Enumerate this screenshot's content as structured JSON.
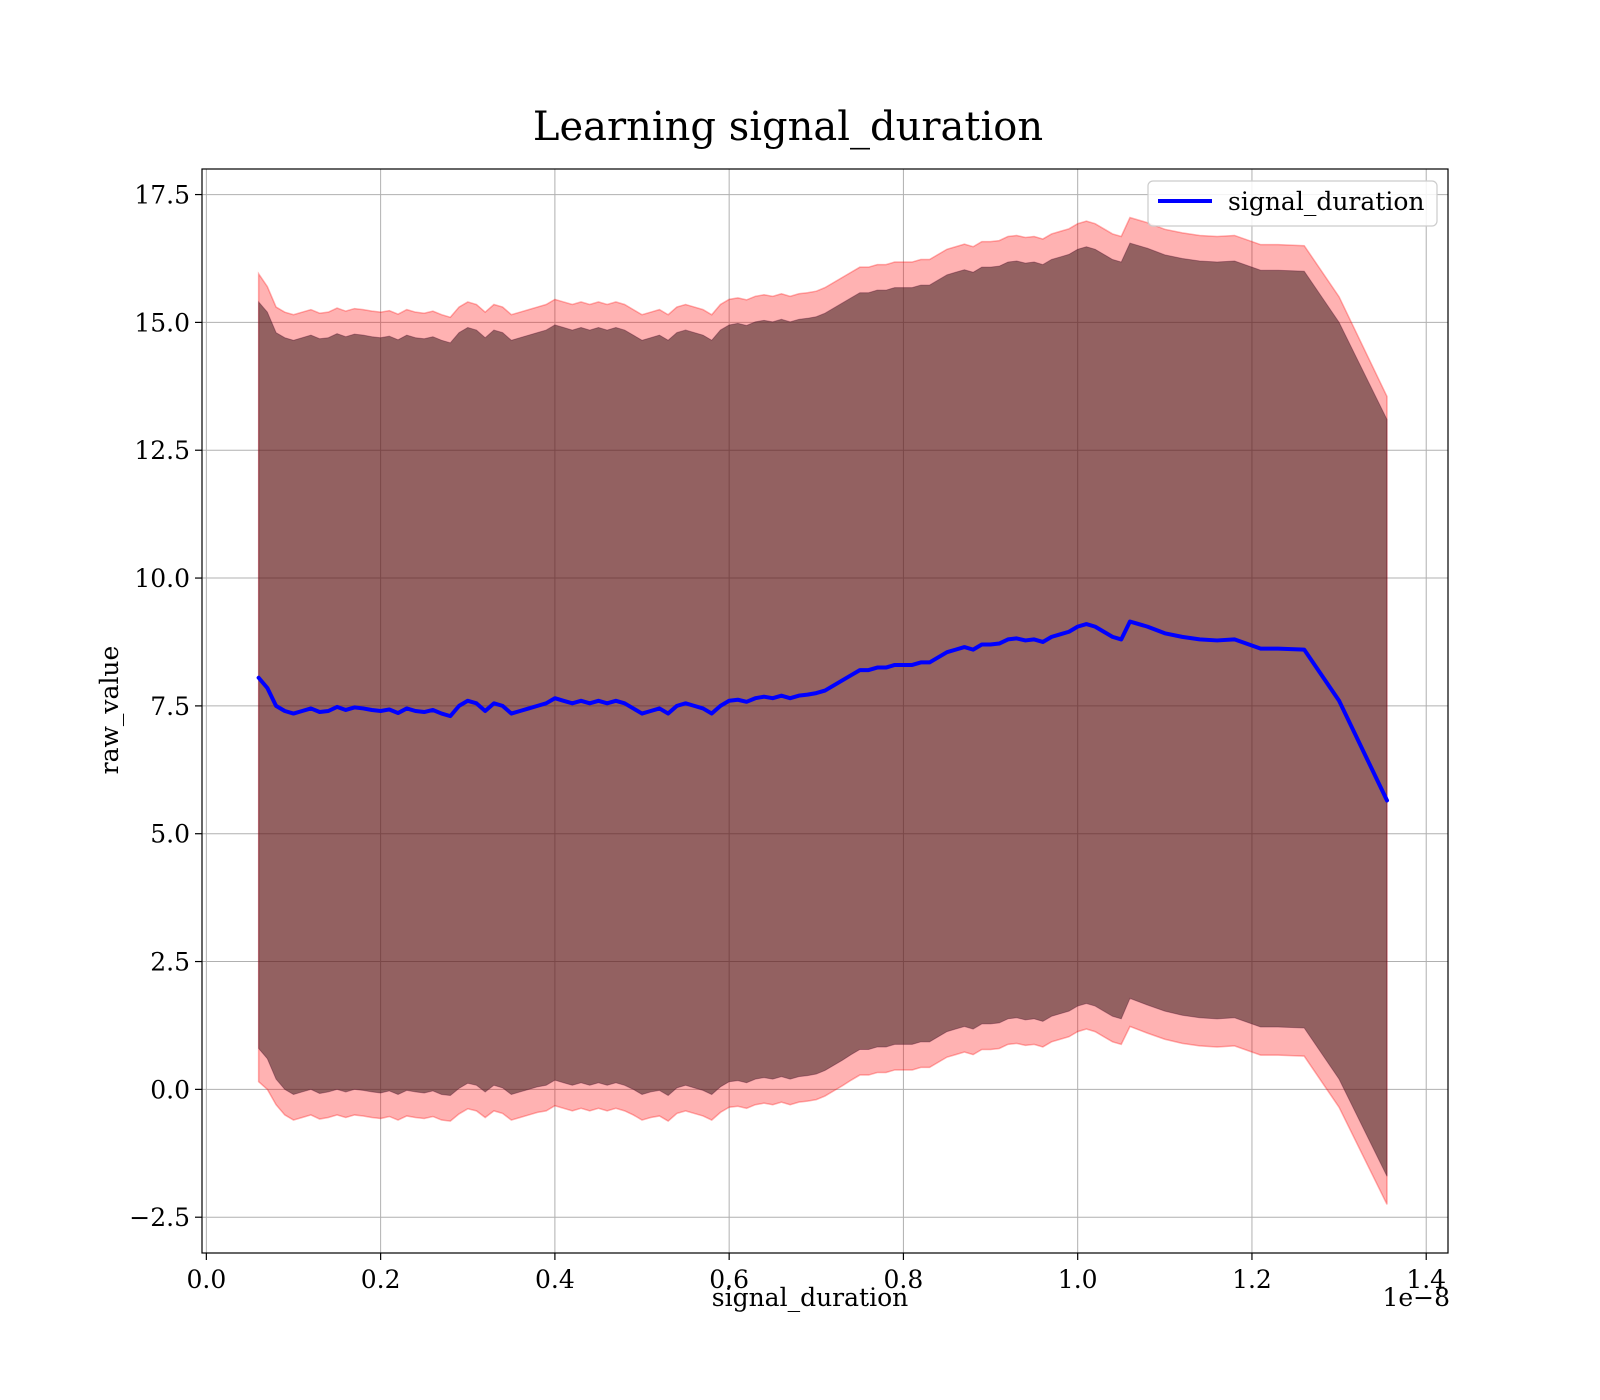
{
  "chart_data": {
    "type": "line",
    "title": "Learning signal_duration",
    "xlabel": "signal_duration",
    "ylabel": "raw_value",
    "x_offset_label": "1e−8",
    "x_ticks": [
      0.0,
      0.2,
      0.4,
      0.6,
      0.8,
      1.0,
      1.2,
      1.4
    ],
    "x_tick_labels": [
      "0.0",
      "0.2",
      "0.4",
      "0.6",
      "0.8",
      "1.0",
      "1.2",
      "1.4"
    ],
    "y_ticks": [
      -2.5,
      0.0,
      2.5,
      5.0,
      7.5,
      10.0,
      12.5,
      15.0,
      17.5
    ],
    "y_tick_labels": [
      "−2.5",
      "0.0",
      "2.5",
      "5.0",
      "7.5",
      "10.0",
      "12.5",
      "15.0",
      "17.5"
    ],
    "xlim": [
      -0.005,
      1.425
    ],
    "ylim": [
      -3.2,
      18.0
    ],
    "grid": true,
    "legend_position": "top-right",
    "colors": {
      "line": "#0000ff",
      "outer_band": "#ff0000",
      "inner_band": "#006400",
      "core_band": "#4d0a28"
    },
    "x": [
      0.06,
      0.07,
      0.08,
      0.09,
      0.1,
      0.11,
      0.12,
      0.13,
      0.14,
      0.15,
      0.16,
      0.17,
      0.18,
      0.19,
      0.2,
      0.21,
      0.22,
      0.23,
      0.24,
      0.25,
      0.26,
      0.27,
      0.28,
      0.29,
      0.3,
      0.31,
      0.32,
      0.33,
      0.34,
      0.35,
      0.36,
      0.37,
      0.38,
      0.39,
      0.4,
      0.41,
      0.42,
      0.43,
      0.44,
      0.45,
      0.46,
      0.47,
      0.48,
      0.49,
      0.5,
      0.51,
      0.52,
      0.53,
      0.54,
      0.55,
      0.56,
      0.57,
      0.58,
      0.59,
      0.6,
      0.61,
      0.62,
      0.63,
      0.64,
      0.65,
      0.66,
      0.67,
      0.68,
      0.69,
      0.7,
      0.71,
      0.72,
      0.73,
      0.74,
      0.75,
      0.76,
      0.77,
      0.78,
      0.79,
      0.8,
      0.81,
      0.82,
      0.83,
      0.84,
      0.85,
      0.86,
      0.87,
      0.88,
      0.89,
      0.9,
      0.91,
      0.92,
      0.93,
      0.94,
      0.95,
      0.96,
      0.97,
      0.98,
      0.99,
      1.0,
      1.01,
      1.02,
      1.03,
      1.04,
      1.05,
      1.06,
      1.08,
      1.1,
      1.12,
      1.14,
      1.16,
      1.18,
      1.21,
      1.23,
      1.26,
      1.3,
      1.355
    ],
    "series": [
      {
        "name": "signal_duration",
        "values": [
          8.05,
          7.85,
          7.5,
          7.4,
          7.35,
          7.4,
          7.45,
          7.38,
          7.4,
          7.48,
          7.42,
          7.47,
          7.45,
          7.42,
          7.4,
          7.43,
          7.36,
          7.45,
          7.4,
          7.38,
          7.42,
          7.35,
          7.3,
          7.5,
          7.6,
          7.55,
          7.4,
          7.55,
          7.5,
          7.35,
          7.4,
          7.45,
          7.5,
          7.55,
          7.65,
          7.6,
          7.55,
          7.6,
          7.55,
          7.6,
          7.55,
          7.6,
          7.55,
          7.45,
          7.35,
          7.4,
          7.45,
          7.35,
          7.5,
          7.55,
          7.5,
          7.45,
          7.35,
          7.5,
          7.6,
          7.62,
          7.58,
          7.65,
          7.68,
          7.65,
          7.7,
          7.65,
          7.7,
          7.72,
          7.75,
          7.8,
          7.9,
          8.0,
          8.1,
          8.2,
          8.2,
          8.25,
          8.25,
          8.3,
          8.3,
          8.3,
          8.35,
          8.35,
          8.45,
          8.55,
          8.6,
          8.65,
          8.6,
          8.7,
          8.7,
          8.72,
          8.8,
          8.82,
          8.78,
          8.8,
          8.75,
          8.85,
          8.9,
          8.95,
          9.05,
          9.1,
          9.05,
          8.95,
          8.85,
          8.8,
          9.15,
          9.05,
          8.92,
          8.85,
          8.8,
          8.78,
          8.8,
          8.62,
          8.62,
          8.6,
          7.6,
          5.65
        ]
      }
    ],
    "bands": [
      {
        "role": "outer",
        "lower": [
          0.15,
          0.0,
          -0.3,
          -0.5,
          -0.6,
          -0.55,
          -0.5,
          -0.58,
          -0.55,
          -0.5,
          -0.55,
          -0.5,
          -0.52,
          -0.55,
          -0.57,
          -0.53,
          -0.6,
          -0.52,
          -0.55,
          -0.57,
          -0.53,
          -0.6,
          -0.62,
          -0.48,
          -0.38,
          -0.42,
          -0.55,
          -0.42,
          -0.47,
          -0.6,
          -0.55,
          -0.5,
          -0.45,
          -0.42,
          -0.32,
          -0.37,
          -0.42,
          -0.37,
          -0.42,
          -0.37,
          -0.42,
          -0.37,
          -0.42,
          -0.5,
          -0.6,
          -0.55,
          -0.52,
          -0.62,
          -0.47,
          -0.42,
          -0.47,
          -0.52,
          -0.6,
          -0.45,
          -0.35,
          -0.33,
          -0.37,
          -0.3,
          -0.27,
          -0.3,
          -0.25,
          -0.3,
          -0.25,
          -0.23,
          -0.2,
          -0.13,
          -0.03,
          0.07,
          0.18,
          0.28,
          0.28,
          0.33,
          0.33,
          0.38,
          0.38,
          0.38,
          0.43,
          0.43,
          0.53,
          0.63,
          0.68,
          0.73,
          0.68,
          0.78,
          0.78,
          0.8,
          0.88,
          0.9,
          0.86,
          0.88,
          0.83,
          0.93,
          0.98,
          1.03,
          1.13,
          1.18,
          1.13,
          1.03,
          0.93,
          0.88,
          1.23,
          1.1,
          0.98,
          0.9,
          0.85,
          0.83,
          0.85,
          0.67,
          0.67,
          0.65,
          -0.35,
          -2.25
        ],
        "upper": [
          15.95,
          15.7,
          15.3,
          15.2,
          15.15,
          15.2,
          15.25,
          15.18,
          15.2,
          15.28,
          15.22,
          15.27,
          15.25,
          15.22,
          15.2,
          15.23,
          15.16,
          15.25,
          15.2,
          15.18,
          15.22,
          15.15,
          15.1,
          15.3,
          15.4,
          15.35,
          15.2,
          15.35,
          15.3,
          15.15,
          15.2,
          15.25,
          15.3,
          15.35,
          15.45,
          15.4,
          15.35,
          15.4,
          15.35,
          15.4,
          15.35,
          15.4,
          15.35,
          15.25,
          15.15,
          15.2,
          15.25,
          15.15,
          15.3,
          15.35,
          15.3,
          15.25,
          15.15,
          15.35,
          15.45,
          15.48,
          15.44,
          15.51,
          15.54,
          15.51,
          15.56,
          15.51,
          15.56,
          15.58,
          15.61,
          15.68,
          15.78,
          15.88,
          15.98,
          16.08,
          16.08,
          16.13,
          16.13,
          16.18,
          16.18,
          16.18,
          16.23,
          16.23,
          16.33,
          16.43,
          16.48,
          16.53,
          16.48,
          16.58,
          16.58,
          16.6,
          16.68,
          16.7,
          16.66,
          16.68,
          16.63,
          16.73,
          16.78,
          16.83,
          16.93,
          16.98,
          16.93,
          16.83,
          16.73,
          16.68,
          17.05,
          16.95,
          16.82,
          16.75,
          16.7,
          16.68,
          16.7,
          16.52,
          16.52,
          16.5,
          15.5,
          13.55
        ]
      },
      {
        "role": "inner",
        "lower": [
          0.8,
          0.6,
          0.2,
          0.0,
          -0.1,
          -0.05,
          0.0,
          -0.08,
          -0.05,
          0.0,
          -0.05,
          0.0,
          -0.02,
          -0.05,
          -0.07,
          -0.03,
          -0.1,
          -0.02,
          -0.05,
          -0.07,
          -0.03,
          -0.1,
          -0.12,
          0.02,
          0.12,
          0.08,
          -0.05,
          0.08,
          0.03,
          -0.1,
          -0.05,
          0.0,
          0.05,
          0.08,
          0.18,
          0.13,
          0.08,
          0.13,
          0.08,
          0.13,
          0.08,
          0.13,
          0.08,
          0.0,
          -0.1,
          -0.05,
          -0.02,
          -0.12,
          0.03,
          0.08,
          0.03,
          -0.02,
          -0.1,
          0.05,
          0.15,
          0.17,
          0.13,
          0.2,
          0.23,
          0.2,
          0.25,
          0.2,
          0.25,
          0.27,
          0.3,
          0.37,
          0.47,
          0.57,
          0.68,
          0.78,
          0.78,
          0.83,
          0.83,
          0.88,
          0.88,
          0.88,
          0.93,
          0.93,
          1.03,
          1.13,
          1.18,
          1.23,
          1.18,
          1.28,
          1.28,
          1.3,
          1.38,
          1.4,
          1.36,
          1.38,
          1.33,
          1.43,
          1.48,
          1.53,
          1.63,
          1.68,
          1.63,
          1.53,
          1.43,
          1.38,
          1.78,
          1.65,
          1.53,
          1.45,
          1.4,
          1.38,
          1.4,
          1.22,
          1.22,
          1.2,
          0.2,
          -1.7
        ],
        "upper": [
          15.4,
          15.2,
          14.8,
          14.7,
          14.65,
          14.7,
          14.75,
          14.68,
          14.7,
          14.78,
          14.72,
          14.77,
          14.75,
          14.72,
          14.7,
          14.73,
          14.66,
          14.75,
          14.7,
          14.68,
          14.72,
          14.65,
          14.6,
          14.8,
          14.9,
          14.85,
          14.7,
          14.85,
          14.8,
          14.65,
          14.7,
          14.75,
          14.8,
          14.85,
          14.95,
          14.9,
          14.85,
          14.9,
          14.85,
          14.9,
          14.85,
          14.9,
          14.85,
          14.75,
          14.65,
          14.7,
          14.75,
          14.65,
          14.8,
          14.85,
          14.8,
          14.75,
          14.65,
          14.85,
          14.95,
          14.98,
          14.94,
          15.01,
          15.04,
          15.01,
          15.06,
          15.01,
          15.06,
          15.08,
          15.11,
          15.18,
          15.28,
          15.38,
          15.48,
          15.58,
          15.58,
          15.63,
          15.63,
          15.68,
          15.68,
          15.68,
          15.73,
          15.73,
          15.83,
          15.93,
          15.98,
          16.03,
          15.98,
          16.08,
          16.08,
          16.1,
          16.18,
          16.2,
          16.16,
          16.18,
          16.13,
          16.23,
          16.28,
          16.33,
          16.43,
          16.48,
          16.43,
          16.33,
          16.23,
          16.18,
          16.55,
          16.45,
          16.32,
          16.25,
          16.2,
          16.18,
          16.2,
          16.02,
          16.02,
          16.0,
          15.0,
          13.1
        ]
      }
    ]
  }
}
